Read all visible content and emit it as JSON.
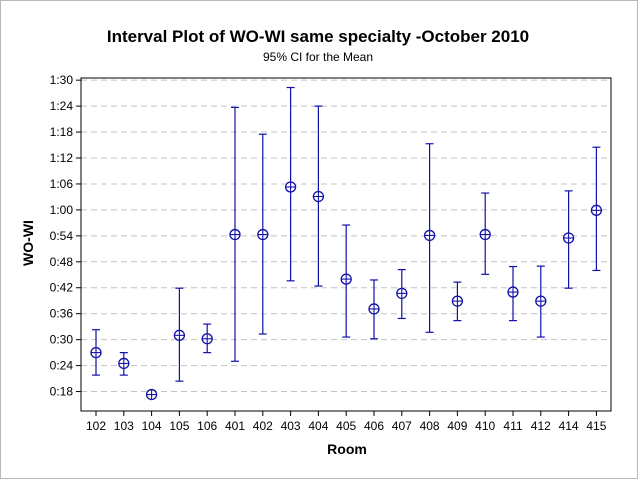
{
  "chart_data": {
    "type": "interval",
    "title": "Interval Plot of WO-WI same specialty -October 2010",
    "subtitle": "95% CI for the Mean",
    "xlabel": "Room",
    "ylabel": "WO-WI",
    "categories": [
      "102",
      "103",
      "104",
      "105",
      "106",
      "401",
      "402",
      "403",
      "404",
      "405",
      "406",
      "407",
      "408",
      "409",
      "410",
      "411",
      "412",
      "414",
      "415"
    ],
    "y_unit": "minutes",
    "y_ticks": [
      18,
      24,
      30,
      36,
      42,
      48,
      54,
      60,
      66,
      72,
      78,
      84,
      90
    ],
    "y_tick_labels": [
      "0:18",
      "0:24",
      "0:30",
      "0:36",
      "0:42",
      "0:48",
      "0:54",
      "1:00",
      "1:06",
      "1:12",
      "1:18",
      "1:24",
      "1:30"
    ],
    "ylim": [
      13.5,
      90.5
    ],
    "grid": "horizontal dashed",
    "series": [
      {
        "mean": [
          27.0,
          24.5,
          17.3,
          31.0,
          30.2,
          54.3,
          54.3,
          65.3,
          63.1,
          44.0,
          37.1,
          40.7,
          54.1,
          38.9,
          54.3,
          41.0,
          38.9,
          53.5,
          59.9
        ],
        "lower": [
          21.8,
          21.8,
          16.5,
          20.4,
          27.0,
          25.0,
          31.3,
          43.6,
          42.4,
          30.6,
          30.2,
          34.9,
          31.7,
          34.4,
          45.1,
          34.4,
          30.6,
          41.9,
          46.0
        ],
        "upper": [
          32.3,
          27.0,
          18.2,
          41.9,
          33.6,
          83.7,
          77.5,
          88.3,
          84.0,
          56.5,
          43.8,
          46.2,
          75.3,
          43.3,
          63.9,
          46.9,
          47.0,
          64.4,
          74.5
        ]
      }
    ]
  },
  "colors": {
    "marker": "#1111aa",
    "plot_border": "#000000",
    "grid": "#c4c4c4"
  }
}
